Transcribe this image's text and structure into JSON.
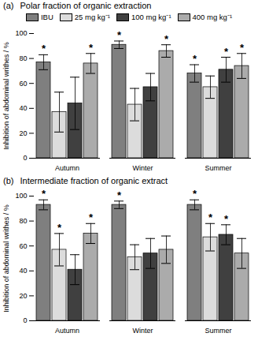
{
  "chart_data": [
    {
      "type": "bar",
      "annotation": "(a)",
      "title": "Polar fraction of organic extraction",
      "ylabel": "Inhibition of abdominal writhes / %",
      "categories": [
        "Autumn",
        "Winter",
        "Summer"
      ],
      "ylim": [
        0,
        100
      ],
      "yticks": [
        0,
        20,
        40,
        60,
        80,
        100
      ],
      "legend": "top",
      "significance_mark": "*",
      "series": [
        {
          "name": "IBU",
          "color": "#7f7f7f",
          "values": [
            77,
            91,
            68
          ],
          "errors": [
            6,
            3,
            7
          ],
          "significant": [
            true,
            true,
            true
          ]
        },
        {
          "name": "25 mg kg⁻¹",
          "color": "#dcdcdc",
          "values": [
            37,
            43,
            57
          ],
          "errors": [
            16,
            13,
            9
          ],
          "significant": [
            false,
            false,
            false
          ]
        },
        {
          "name": "100 mg kg⁻¹",
          "color": "#404040",
          "values": [
            44,
            57,
            71
          ],
          "errors": [
            21,
            11,
            10
          ],
          "significant": [
            false,
            false,
            true
          ]
        },
        {
          "name": "400 mg kg⁻¹",
          "color": "#ababab",
          "values": [
            76,
            86,
            74
          ],
          "errors": [
            8,
            5,
            10
          ],
          "significant": [
            true,
            true,
            true
          ]
        }
      ]
    },
    {
      "type": "bar",
      "annotation": "(b)",
      "title": "Intermediate fraction of organic extract",
      "ylabel": "Inhibition of abdominal writhes / %",
      "categories": [
        "Autumn",
        "Winter",
        "Summer"
      ],
      "ylim": [
        0,
        100
      ],
      "yticks": [
        0,
        20,
        40,
        60,
        80,
        100
      ],
      "significance_mark": "*",
      "series": [
        {
          "name": "IBU",
          "color": "#7f7f7f",
          "values": [
            93,
            93,
            93
          ],
          "errors": [
            4,
            3,
            4
          ],
          "significant": [
            true,
            true,
            true
          ]
        },
        {
          "name": "25 mg kg⁻¹",
          "color": "#dcdcdc",
          "values": [
            57,
            51,
            67
          ],
          "errors": [
            13,
            10,
            11
          ],
          "significant": [
            true,
            false,
            true
          ]
        },
        {
          "name": "100 mg kg⁻¹",
          "color": "#404040",
          "values": [
            41,
            54,
            69
          ],
          "errors": [
            12,
            12,
            8
          ],
          "significant": [
            false,
            false,
            true
          ]
        },
        {
          "name": "400 mg kg⁻¹",
          "color": "#ababab",
          "values": [
            70,
            57,
            54
          ],
          "errors": [
            8,
            11,
            12
          ],
          "significant": [
            true,
            false,
            false
          ]
        }
      ]
    }
  ]
}
